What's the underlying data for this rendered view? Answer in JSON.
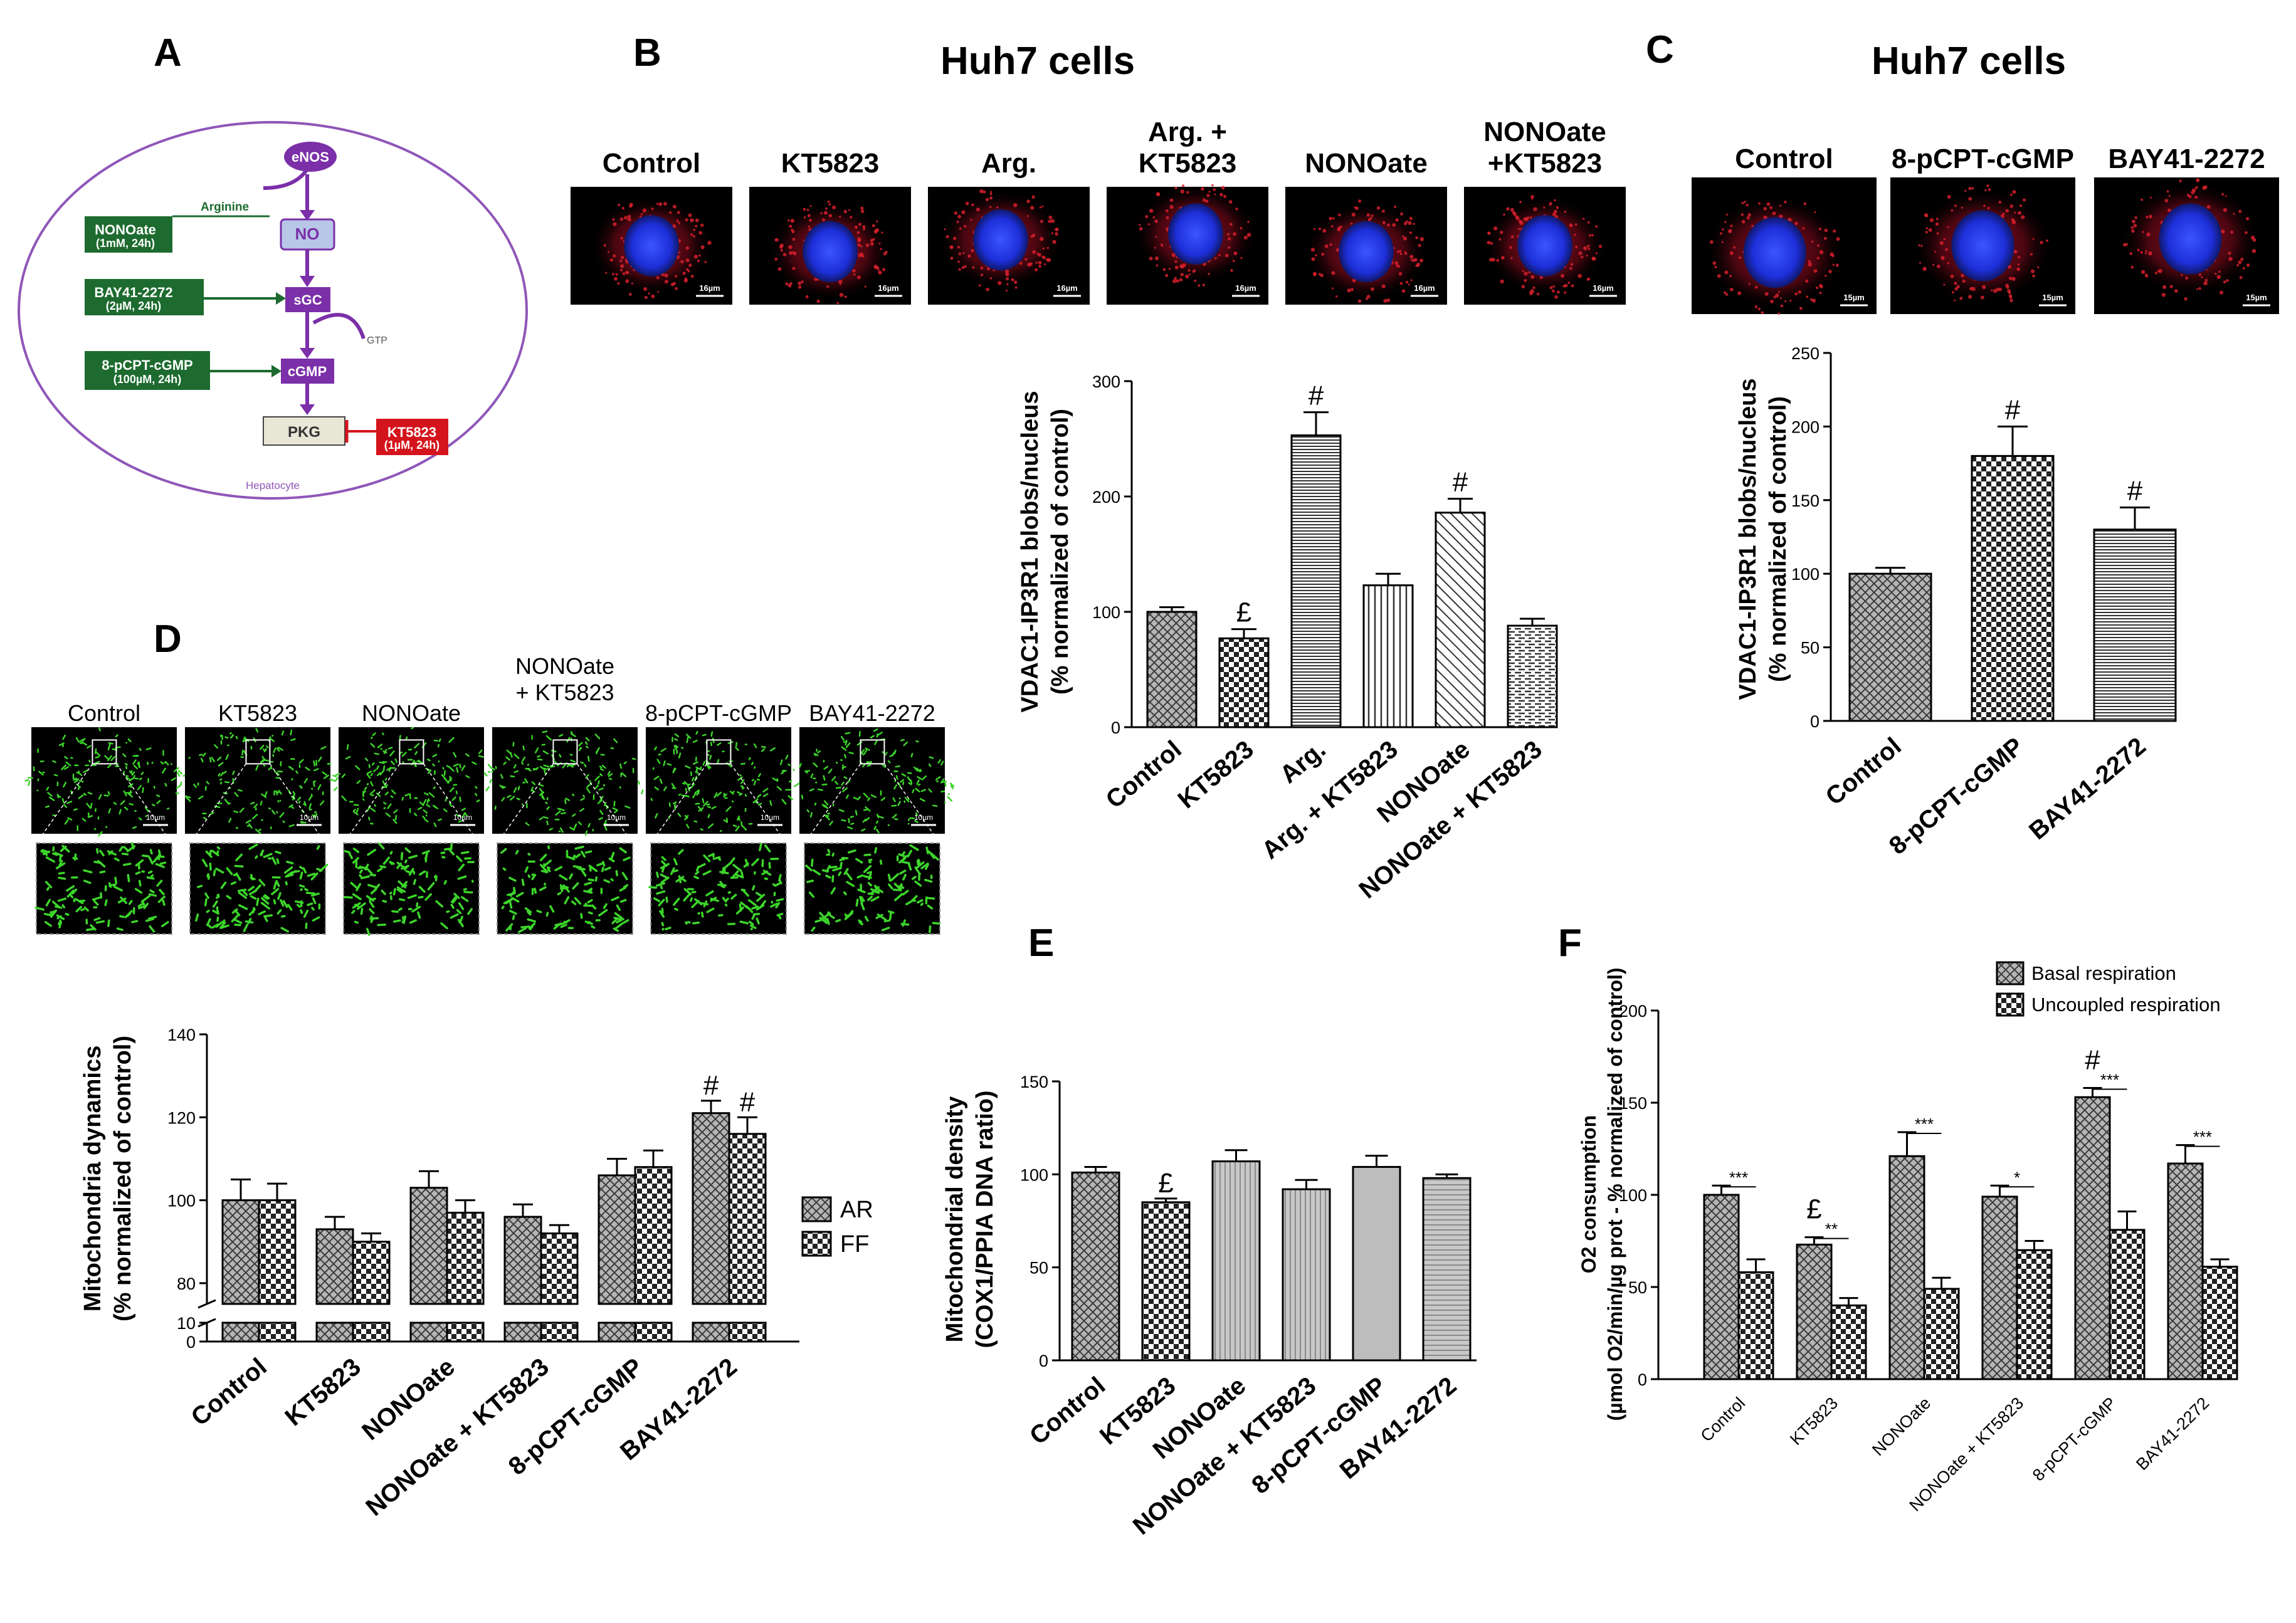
{
  "panels": {
    "A": {
      "label": "A",
      "nodes": {
        "enos": "eNOS",
        "no": "NO",
        "sgc": "sGC",
        "cgmp": "cGMP",
        "pkg": "PKG",
        "arginine": "Arginine",
        "gtp": "GTP",
        "hepatocyte": "Hepatocyte"
      },
      "drugs": [
        {
          "name": "NONOate",
          "dose": "(1mM, 24h)"
        },
        {
          "name": "BAY41-2272",
          "dose": "(2µM, 24h)"
        },
        {
          "name": "8-pCPT-cGMP",
          "dose": "(100µM, 24h)"
        },
        {
          "name": "KT5823",
          "dose": "(1µM, 24h)"
        }
      ]
    },
    "B": {
      "label": "B",
      "title": "Huh7 cells",
      "images": [
        "Control",
        "KT5823",
        "Arg.",
        "Arg. +\nKT5823",
        "NONOate",
        "NONOate\n+KT5823"
      ],
      "scale_bar": "16µm"
    },
    "C": {
      "label": "C",
      "title": "Huh7 cells",
      "images": [
        "Control",
        "8-pCPT-cGMP",
        "BAY41-2272"
      ],
      "scale_bar": "15µm"
    },
    "D": {
      "label": "D",
      "images": [
        "Control",
        "KT5823",
        "NONOate",
        "NONOate\n+ KT5823",
        "8-pCPT-cGMP",
        "BAY41-2272"
      ],
      "scale_bar": "10µm"
    },
    "E": {
      "label": "E"
    },
    "F": {
      "label": "F"
    }
  },
  "colors": {
    "green_box": "#1d6b2f",
    "purple": "#7b2fa8",
    "red_box": "#d4141c",
    "bar_fill": "#9a9a9a",
    "nucleus": "#1d33e6",
    "mito": "#3cd42a"
  },
  "chart_data": [
    {
      "id": "B",
      "type": "bar",
      "categories": [
        "Control",
        "KT5823",
        "Arg.",
        "Arg. + KT5823",
        "NONOate",
        "NONOate + KT5823"
      ],
      "values": [
        100,
        77,
        253,
        123,
        186,
        88
      ],
      "errors": [
        4,
        8,
        20,
        10,
        12,
        6
      ],
      "annotations": [
        "",
        "£",
        "#",
        "",
        "#",
        ""
      ],
      "ylabel": "VDAC1-IP3R1 blobs/nucleus\n(% normalized of control)",
      "ylim": [
        0,
        300
      ],
      "yticks": [
        0,
        100,
        200,
        300
      ]
    },
    {
      "id": "C",
      "type": "bar",
      "categories": [
        "Control",
        "8-pCPT-cGMP",
        "BAY41-2272"
      ],
      "values": [
        100,
        180,
        130
      ],
      "errors": [
        4,
        20,
        15
      ],
      "annotations": [
        "",
        "#",
        "#"
      ],
      "ylabel": "VDAC1-IP3R1 blobs/nucleus\n(% normalized of control)",
      "ylim": [
        0,
        250
      ],
      "yticks": [
        0,
        50,
        100,
        150,
        200,
        250
      ]
    },
    {
      "id": "D",
      "type": "bar",
      "categories": [
        "Control",
        "KT5823",
        "NONOate",
        "NONOate + KT5823",
        "8-pCPT-cGMP",
        "BAY41-2272"
      ],
      "series": [
        {
          "name": "AR",
          "values": [
            100,
            93,
            103,
            96,
            106,
            121
          ],
          "errors": [
            5,
            3,
            4,
            3,
            4,
            3
          ]
        },
        {
          "name": "FF",
          "values": [
            100,
            90,
            97,
            92,
            108,
            116
          ],
          "errors": [
            4,
            2,
            3,
            2,
            4,
            4
          ]
        }
      ],
      "annotations": [
        [
          "",
          ""
        ],
        [
          "",
          ""
        ],
        [
          "",
          ""
        ],
        [
          "",
          ""
        ],
        [
          "",
          ""
        ],
        [
          "#",
          "#"
        ]
      ],
      "ylabel": "Mitochondria dynamics\n(% normalized of control)",
      "ylim": [
        0,
        140
      ],
      "axis_break": [
        10,
        75
      ],
      "yticks": [
        0,
        10,
        80,
        100,
        120,
        140
      ],
      "legend": "right"
    },
    {
      "id": "E",
      "type": "bar",
      "categories": [
        "Control",
        "KT5823",
        "NONOate",
        "NONOate + KT5823",
        "8-pCPT-cGMP",
        "BAY41-2272"
      ],
      "values": [
        101,
        85,
        107,
        92,
        104,
        98
      ],
      "errors": [
        3,
        2,
        6,
        5,
        6,
        2
      ],
      "annotations": [
        "",
        "£",
        "",
        "",
        "",
        ""
      ],
      "ylabel": "Mitochondrial density\n(COX1/PPIA DNA ratio)",
      "ylim": [
        0,
        150
      ],
      "yticks": [
        0,
        50,
        100,
        150
      ]
    },
    {
      "id": "F",
      "type": "bar",
      "categories": [
        "Control",
        "KT5823",
        "NONOate",
        "NONOate + KT5823",
        "8-pCPT-cGMP",
        "BAY41-2272"
      ],
      "series": [
        {
          "name": "Basal respiration",
          "values": [
            100,
            73,
            121,
            99,
            153,
            117
          ],
          "errors": [
            5,
            4,
            13,
            6,
            5,
            10
          ]
        },
        {
          "name": "Uncoupled respiration",
          "values": [
            58,
            40,
            49,
            70,
            81,
            61
          ],
          "errors": [
            7,
            4,
            6,
            5,
            10,
            4
          ]
        }
      ],
      "top_annotations": [
        "",
        "£",
        "",
        "",
        "#",
        ""
      ],
      "sig": [
        "***",
        "**",
        "***",
        "*",
        "***",
        "***"
      ],
      "ylabel": "O2 consumption\n(µmol O2/min/µg prot - % normalized of control)",
      "ylim": [
        0,
        200
      ],
      "yticks": [
        0,
        50,
        100,
        150,
        200
      ],
      "legend": "top-right"
    }
  ]
}
